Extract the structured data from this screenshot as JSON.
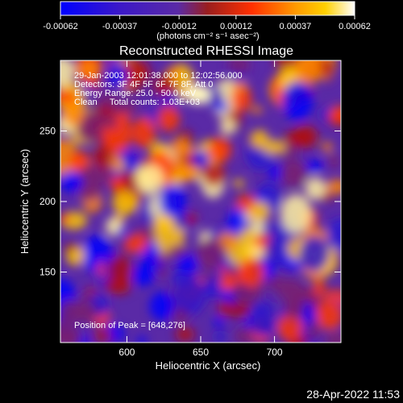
{
  "colorbar": {
    "ticks": [
      "-0.00062",
      "-0.00037",
      "-0.00012",
      "0.00012",
      "0.00037",
      "0.00062"
    ],
    "tick_values": [
      -0.00062,
      -0.00037,
      -0.00012,
      0.00012,
      0.00037,
      0.00062
    ],
    "units": "(photons cm⁻² s⁻¹ asec⁻²)"
  },
  "chart_data": {
    "type": "heatmap",
    "title": "Reconstructed RHESSI Image",
    "xlabel": "Heliocentric X (arcsec)",
    "ylabel": "Heliocentric Y (arcsec)",
    "xlim": [
      555,
      745
    ],
    "ylim": [
      100,
      300
    ],
    "xticks": [
      600,
      650,
      700
    ],
    "yticks": [
      150,
      200,
      250
    ],
    "grid": false,
    "value_range": [
      -0.00062,
      0.00062
    ],
    "colormap": "red-temperature",
    "peak": [
      648,
      276
    ],
    "annotations": [
      "29-Jan-2003 12:01:38.000 to 12:02:56.000",
      "Detectors: 3F 4F 5F 6F 7F 8F, Att 0",
      "Energy Range: 25.0 - 50.0 keV",
      "Clean     Total counts: 1.03E+03",
      "Position of Peak = [648,276]"
    ]
  },
  "footer": {
    "timestamp": "28-Apr-2022 11:53"
  },
  "colors": {
    "background": "#000000",
    "colormap_stops": [
      "#0000ff",
      "#5a2aa6",
      "#9a1e1e",
      "#ff6a00",
      "#ffd000",
      "#ffffff"
    ]
  }
}
